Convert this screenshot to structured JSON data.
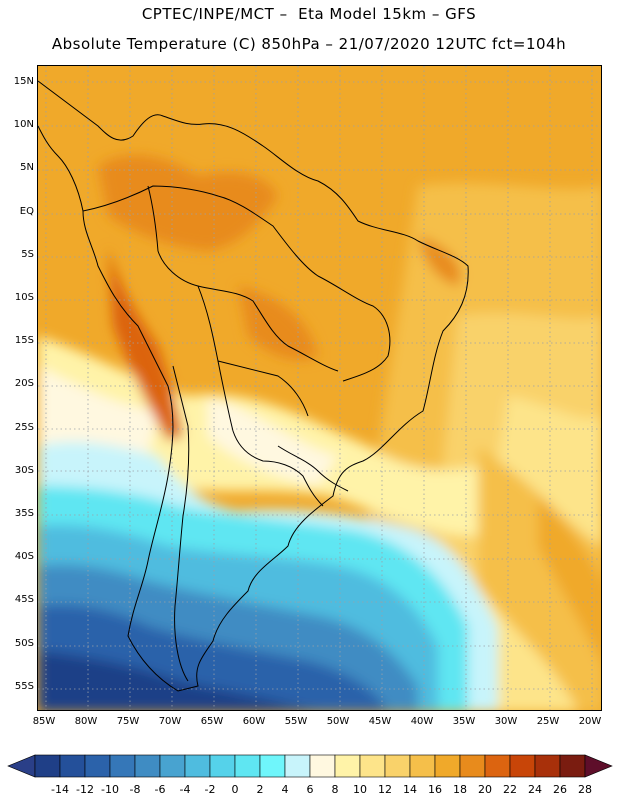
{
  "header": {
    "line1": "CPTEC/INPE/MCT –  Eta Model 15km – GFS",
    "line2": "Absolute Temperature (C) 850hPa – 21/07/2020 12UTC fct=104h"
  },
  "map": {
    "latitudes": [
      "15N",
      "10N",
      "5N",
      "EQ",
      "5S",
      "10S",
      "15S",
      "20S",
      "25S",
      "30S",
      "35S",
      "40S",
      "45S",
      "50S",
      "55S"
    ],
    "longitudes": [
      "85W",
      "80W",
      "75W",
      "70W",
      "65W",
      "60W",
      "55W",
      "50W",
      "45W",
      "40W",
      "35W",
      "30W",
      "25W",
      "20W"
    ]
  },
  "colorbar": {
    "labels": [
      "-14",
      "-12",
      "-10",
      "-8",
      "-6",
      "-4",
      "-2",
      "0",
      "2",
      "4",
      "6",
      "8",
      "10",
      "12",
      "14",
      "16",
      "18",
      "20",
      "22",
      "24",
      "26",
      "28"
    ],
    "colors": [
      "#1f3f87",
      "#24509a",
      "#2b62aa",
      "#3577b8",
      "#3f8cc3",
      "#48a3d0",
      "#4fbcdf",
      "#55d2ea",
      "#5fe6f2",
      "#6ff6fb",
      "#c8f4fb",
      "#fff8e0",
      "#fff3a8",
      "#fde48a",
      "#f9d26a",
      "#f5bf4a",
      "#f0a92a",
      "#e88b1c",
      "#dc6410",
      "#c84508",
      "#a8300a",
      "#7a1c10",
      "#5e0e2a"
    ]
  },
  "colors": {
    "under": "#2a3f88",
    "over": "#5e0e2a"
  }
}
